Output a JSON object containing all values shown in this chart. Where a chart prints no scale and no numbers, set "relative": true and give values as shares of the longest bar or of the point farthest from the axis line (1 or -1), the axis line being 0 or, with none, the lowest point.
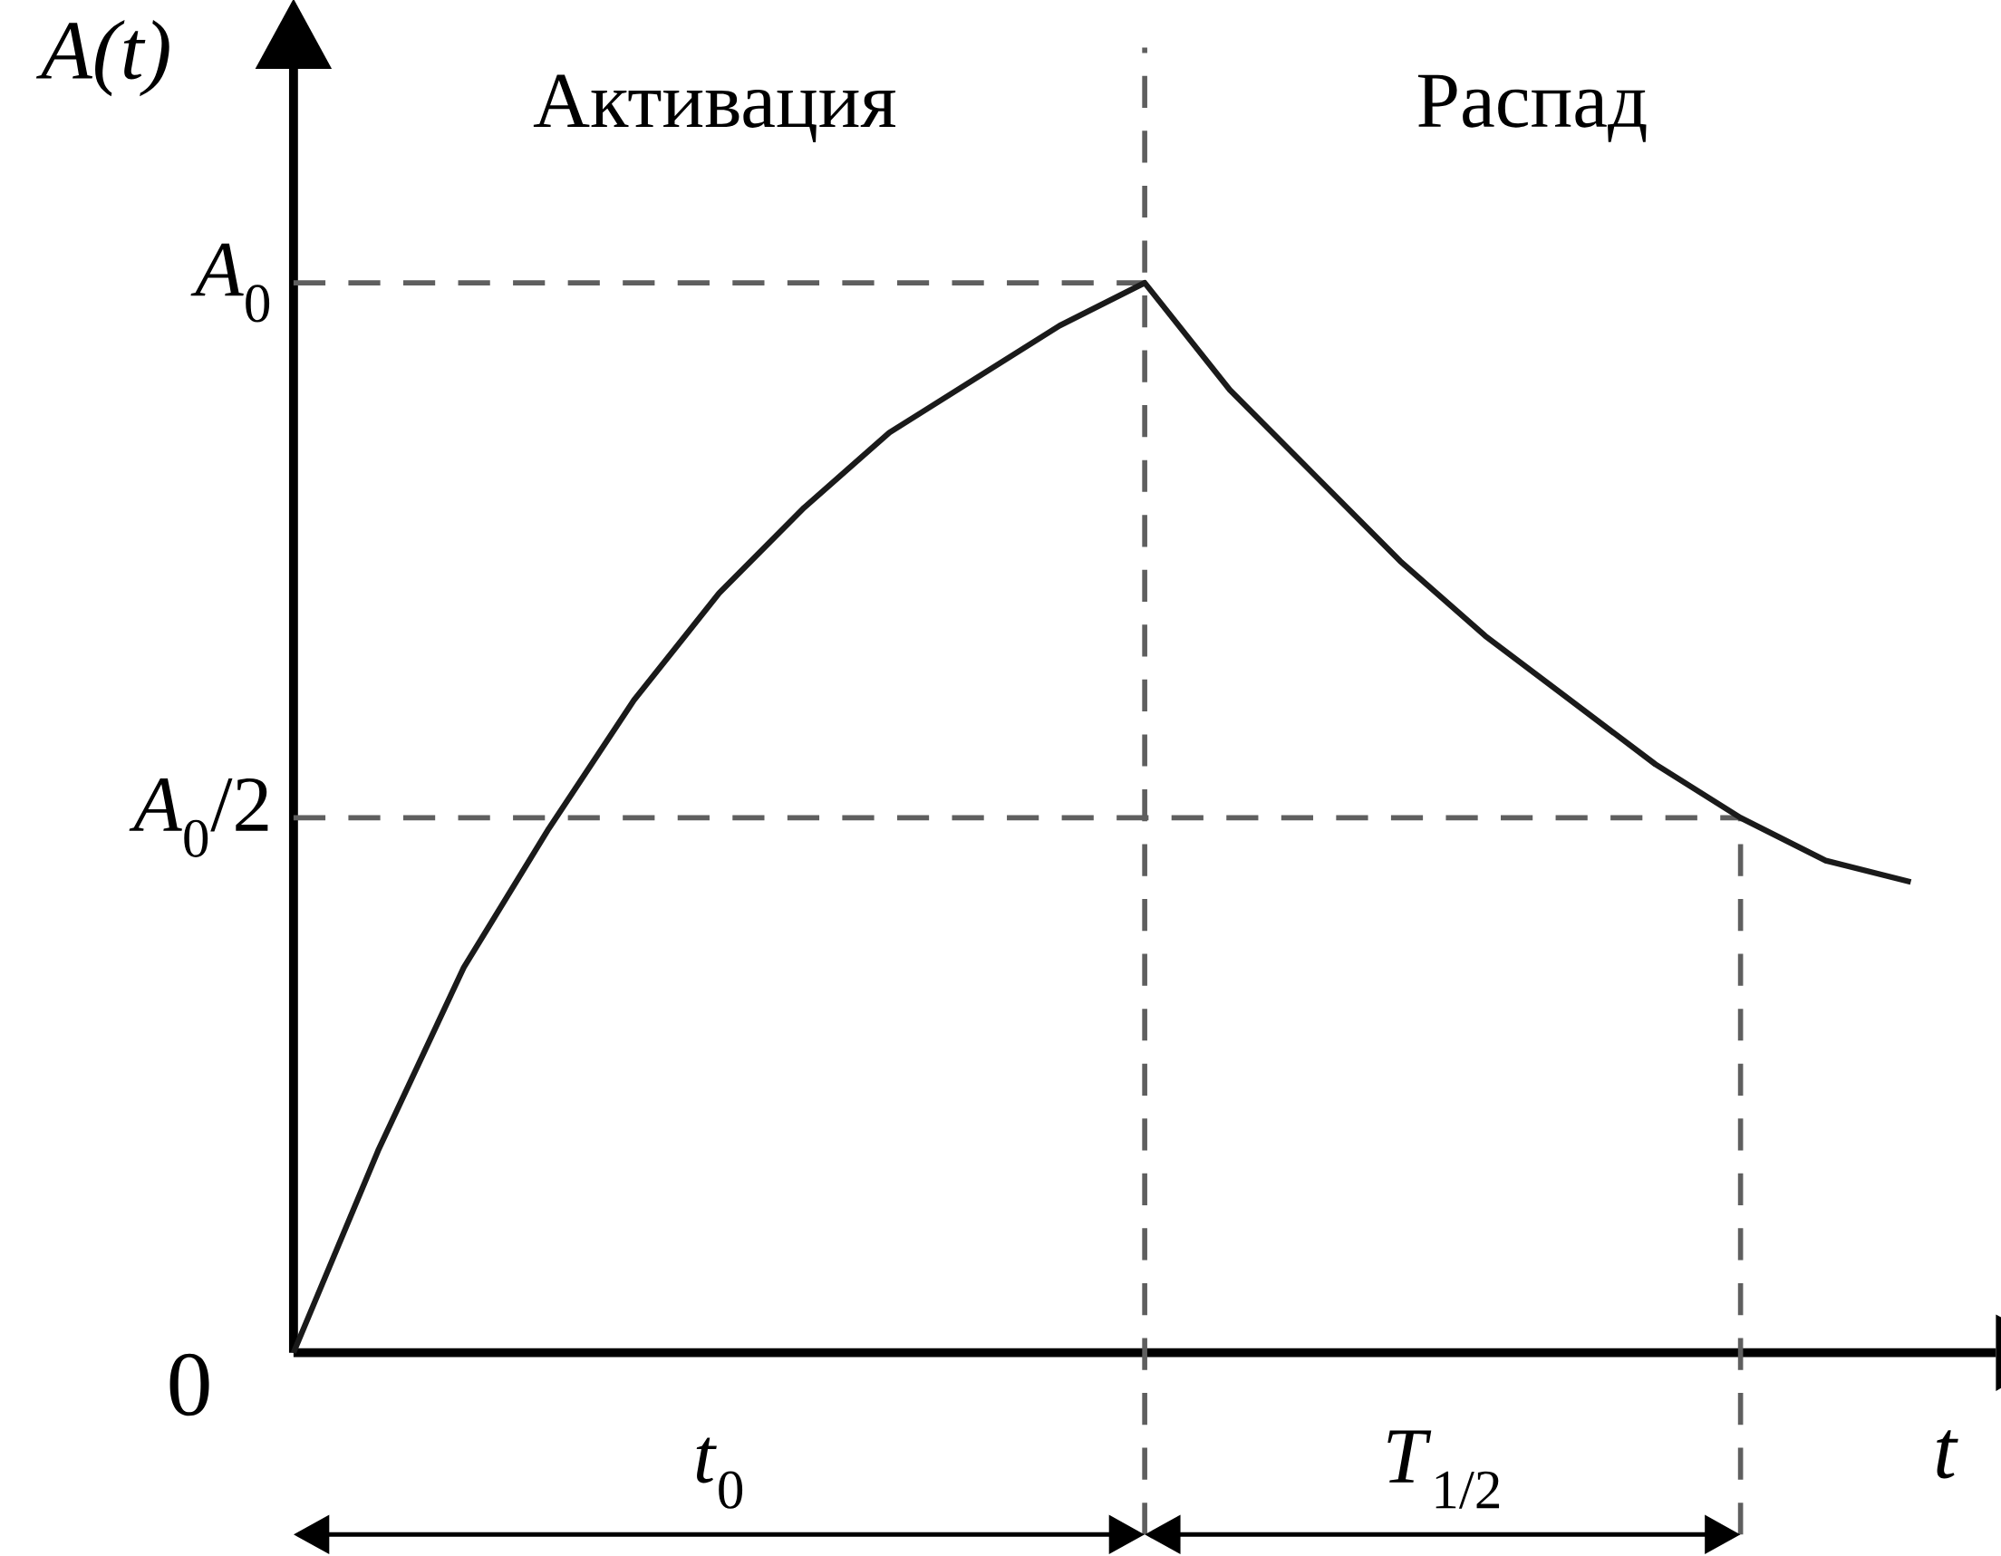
{
  "chart_data": {
    "type": "line",
    "xlabel": "t",
    "ylabel": "A(t)",
    "relative": true,
    "categories": [
      null,
      null,
      null,
      null,
      null,
      null,
      null,
      null,
      null,
      null,
      null,
      null,
      null,
      null,
      null,
      null,
      null,
      null,
      null,
      null
    ],
    "series": [
      {
        "color": "#1a1a1a",
        "values": [
          0,
          0.19,
          0.36,
          0.49,
          0.61,
          0.71,
          0.79,
          0.86,
          0.91,
          0.96,
          1.0,
          0.9,
          0.82,
          0.74,
          0.67,
          0.61,
          0.55,
          0.5,
          0.46,
          0.44
        ]
      }
    ],
    "ref_lines": [
      {
        "axis": "y",
        "value": 1,
        "label": "*A*$_{0}$",
        "color": "#5f5f5f",
        "line_style": "dashed"
      },
      {
        "axis": "y",
        "value": 0.5,
        "label": "*A*$_{0}$/2",
        "color": "#5f5f5f",
        "line_style": "dashed"
      }
    ],
    "annotations": [
      "Активация",
      "Распад",
      "*t*$_{0}$",
      "*T*$_{1/2}$",
      "0"
    ]
  }
}
